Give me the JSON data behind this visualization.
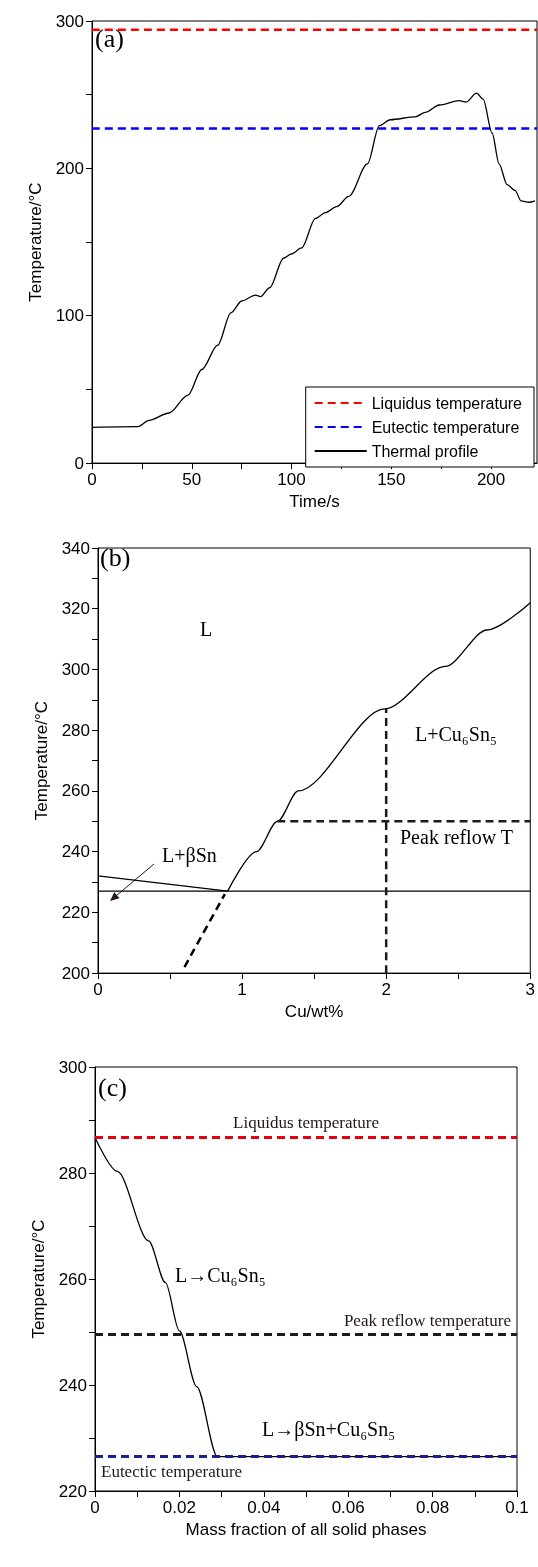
{
  "chart_data": [
    {
      "type": "line",
      "xlabel": "Time/s",
      "ylabel": "Temperature/°C",
      "annotations": [
        "(a)"
      ],
      "xlim": [
        0,
        223
      ],
      "xticks": [
        0,
        {
          "value": 25,
          "label": null
        },
        50,
        {
          "value": 75,
          "label": null
        },
        100,
        {
          "value": 125,
          "label": null
        },
        150,
        {
          "value": 175,
          "label": null
        },
        200
      ],
      "ylim": [
        0,
        300
      ],
      "yticks": [
        0,
        {
          "value": 50,
          "label": null
        },
        100,
        {
          "value": 150,
          "label": null
        },
        200,
        {
          "value": 250,
          "label": null
        },
        300
      ],
      "legend": "bottom right",
      "marker": "none",
      "series": [
        {
          "name": "Liquidus temperature",
          "color": "#ff0000",
          "line_style": "dashed",
          "x": [
            0,
            223
          ],
          "values": [
            294,
            294
          ]
        },
        {
          "name": "Eutectic temperature",
          "color": "#0000ff",
          "line_style": "dashed",
          "x": [
            0,
            223
          ],
          "values": [
            227,
            227
          ]
        },
        {
          "name": "Thermal profile",
          "color": "#000000",
          "line_style": "solid",
          "x": [
            0,
            23,
            28.6,
            38.6,
            48,
            55,
            63,
            69.6,
            75,
            82,
            84.5,
            89,
            96,
            100,
            105,
            112,
            117,
            122.6,
            128.7,
            138,
            144,
            149.5,
            162,
            167,
            174,
            184,
            187.5,
            192.7,
            196,
            200.5,
            204,
            208,
            212,
            215,
            219,
            222
          ],
          "values": [
            24.3,
            24.7,
            29,
            34,
            46,
            63.5,
            80,
            102,
            110,
            114,
            113,
            119,
            139,
            142,
            146,
            166,
            170,
            174,
            181,
            203,
            229,
            233,
            235,
            238,
            243,
            246,
            245,
            251,
            247,
            224,
            203,
            189,
            185,
            178,
            177,
            178
          ]
        }
      ]
    },
    {
      "type": "line",
      "xlabel": "Cu/wt%",
      "ylabel": "Temperature/°C",
      "annotations": [
        "(b)",
        "L",
        "L+βSn",
        "L+Cu₆Sn₅",
        "Peak reflow T"
      ],
      "xlim": [
        0,
        3
      ],
      "xticks": [
        0,
        {
          "value": 0.5,
          "label": null
        },
        1,
        {
          "value": 1.5,
          "label": null
        },
        2,
        {
          "value": 2.5,
          "label": null
        },
        3
      ],
      "ylim": [
        200,
        340
      ],
      "yticks": [
        200,
        {
          "value": 210,
          "label": null
        },
        220,
        {
          "value": 230,
          "label": null
        },
        240,
        {
          "value": 250,
          "label": null
        },
        260,
        {
          "value": 270,
          "label": null
        },
        280,
        {
          "value": 290,
          "label": null
        },
        300,
        {
          "value": 310,
          "label": null
        },
        320,
        {
          "value": 330,
          "label": null
        },
        340
      ],
      "marker": "none",
      "series": [
        {
          "color": "#000000",
          "line_style": "solid",
          "x": [
            0,
            3
          ],
          "values": [
            227,
            227
          ]
        },
        {
          "color": "#000000",
          "line_style": "solid",
          "x": [
            0,
            0.9
          ],
          "values": [
            232,
            227
          ]
        },
        {
          "color": "#000000",
          "line_style": "solid",
          "x": [
            0.9,
            1.1,
            1.245,
            1.39,
            1.99,
            2.41,
            2.7,
            3
          ],
          "values": [
            227,
            240,
            250,
            260,
            287,
            301,
            313,
            322
          ]
        },
        {
          "color": "#000000",
          "line_style": "dashed",
          "x": [
            0.6,
            0.88
          ],
          "values": [
            202,
            226
          ]
        },
        {
          "color": "#231815",
          "line_style": "dashed",
          "x": [
            1.245,
            3
          ],
          "values": [
            250,
            250
          ]
        },
        {
          "color": "#231815",
          "line_style": "dashed",
          "x": [
            2,
            2
          ],
          "values": [
            200,
            287
          ]
        }
      ]
    },
    {
      "type": "line",
      "xlabel": "Mass fraction of all solid phases",
      "ylabel": "Temperature/°C",
      "annotations": [
        "(c)",
        "L→Cu₆Sn₅",
        "L→βSn+Cu₆Sn₅"
      ],
      "xlim": [
        0,
        0.1
      ],
      "xticks": [
        0,
        {
          "value": 0.01,
          "label": null
        },
        0.02,
        {
          "value": 0.03,
          "label": null
        },
        0.04,
        {
          "value": 0.05,
          "label": null
        },
        0.06,
        {
          "value": 0.07,
          "label": null
        },
        0.08,
        {
          "value": 0.09,
          "label": null
        },
        0.1
      ],
      "ylim": [
        220,
        300
      ],
      "yticks": [
        220,
        {
          "value": 230,
          "label": null
        },
        240,
        {
          "value": 250,
          "label": null
        },
        260,
        {
          "value": 270,
          "label": null
        },
        280,
        {
          "value": 290,
          "label": null
        },
        300
      ],
      "marker": "none",
      "ref_lines": [
        {
          "axis": "y",
          "value": 286.7,
          "label": "Liquidus temperature",
          "color": "#e60012",
          "line_style": "dashed"
        },
        {
          "axis": "y",
          "value": 249.5,
          "label": "Peak reflow temperature",
          "color": "#231815",
          "line_style": "dashed"
        },
        {
          "axis": "y",
          "value": 226.5,
          "label": "Eutectic temperature",
          "color": "#1d2088",
          "line_style": "dashed"
        }
      ],
      "series": [
        {
          "color": "#000000",
          "line_style": "solid",
          "x": [
            0,
            0.0053,
            0.0127,
            0.0167,
            0.02,
            0.0241,
            0.029,
            0.1
          ],
          "values": [
            286.7,
            280.3,
            267.2,
            259.3,
            250.2,
            239.7,
            226.5,
            226.5
          ]
        }
      ]
    }
  ]
}
